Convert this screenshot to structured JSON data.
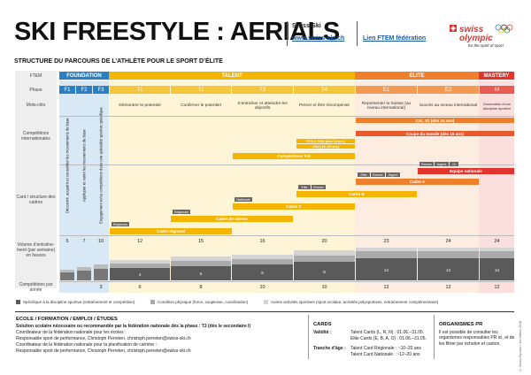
{
  "header": {
    "title": "SKI FREESTYLE : AERIALS",
    "org": "Swiss-Ski",
    "org_link": "www.swiss-ski.ch",
    "ftem_link": "Lien FTEM fédération",
    "logo_text": "swiss olympic",
    "logo_tagline": "for the spirit of sport"
  },
  "subtitle": "STRUCTURE DU PARCOURS DE L’ATHLÈTE POUR LE SPORT D’ÉLITE",
  "row_labels": {
    "ftem": "FTEM",
    "phase": "Phase",
    "mots": "Mots-clés",
    "comp_int": "Compétitions internationales",
    "cadres": "Card / structure des cadres",
    "volume": "Volume d’entraîne-ment (par semaine) en heures",
    "comp_annee": "Compétitions par année"
  },
  "groups": {
    "foundation": "FOUNDATION",
    "talent": "TALENT",
    "elite": "ELITE",
    "mastery": "MASTERY"
  },
  "phases": [
    "F1",
    "F2",
    "F3",
    "T1",
    "T2",
    "T3",
    "T4",
    "E1",
    "E2",
    "M"
  ],
  "mots_cles": {
    "t1": "Démontrer le potentiel",
    "t2": "Confirmer le potentiel",
    "t3": "S’entraîner et atteindre les objectifs",
    "t4": "Percer et être récompensé",
    "e1": "Représenter la Suisse (au niveau international)",
    "e2": "Succès au niveau international",
    "m": "Domination d’une discipline sportive"
  },
  "foundation_texts": {
    "f1": "Découvrir, acquérir et consolider les mouvements de base",
    "f2": "Appliquer et varier les mouvements de base",
    "f3": "Engagement et/ou compétitions dans une spécialité sportive spécifique"
  },
  "competitions": {
    "cm_jo": "CM, JO (dès 15 ans)",
    "coupe_monde": "Coupe du monde (dès 15 ans)",
    "ecoj_cmj": "EOCJ, CMJ (dès 14 ans)",
    "cmj": "CMJ (14–20 ans)",
    "fis": "Compétitions FIS"
  },
  "cadres": {
    "equipe_nat": "Equipe nationale",
    "cadre_a": "Cadre A",
    "cadre_b": "Cadre B",
    "cadre_c": "Cadre C",
    "talents": "Cadre de talents",
    "regional": "Cadre régional"
  },
  "cards": {
    "regionale": "Régionale",
    "nationale": "Nationale",
    "elite": "Elite",
    "bronze": "Bronze",
    "argent": "Argent",
    "or": "Or"
  },
  "volume": {
    "f1": "5",
    "f2": "7",
    "f3": "10",
    "t1": "12",
    "t2": "15",
    "t3": "16",
    "t4": "20",
    "e1": "23",
    "e2": "24",
    "m": "24",
    "sub_t1": "4",
    "sub_t2": "5",
    "sub_t3": "6",
    "sub_t4": "8",
    "sub_e1": "14",
    "sub_e2": "14",
    "sub_m": "14"
  },
  "comp_annee": {
    "f3": "3",
    "t1": "6",
    "t2": "8",
    "t3": "10",
    "t4": "10",
    "e1": "12",
    "e2": "12",
    "m": "12"
  },
  "legend": {
    "specific": "Spécifique à la discipline sportive (entraînement et compétition)",
    "condition": "Condition physique (force, souplesse, coordination)",
    "autres": "Autres activités sportives (sport scolaire, activités polysportives, entraînement complémentaire)"
  },
  "footer": {
    "ecole_title": "ECOLE / FORMATION / EMPLOI / ÉTUDES",
    "ecole_line1": "Solution scolaire nécessaire ou recommandée par la fédération nationale dès la phase : T2 (dès le secondaire I)",
    "ecole_line2": "Coordinateur de la fédération nationale pour les écoles :",
    "ecole_line3": "Responsable sport de performance, Christoph Perreten, christoph.perreten@swiss-ski.ch",
    "ecole_line4": "Coordinateur de la fédération nationale pour la planification de carrière :",
    "ecole_line5": "Responsable sport de performance, Christoph Perreten, christoph.perreten@swiss-ski.ch",
    "cards_title": "CARDS",
    "validite_label": "Validité :",
    "validite_1": "Talent Cards (L, R, N) : 01.06.–31.05.",
    "validite_2": "Elite Cards (E, B, A, O) : 01.06.–31.05.",
    "tranche_label": "Tranche d’âge :",
    "tranche_1": "Talent Card Régionale : ~10–20 ans",
    "tranche_2": "Talent Card Nationale : ~12–20 ans",
    "org_title": "ORGANISMES PR",
    "org_text": "Il est possible de consulter les organismes responsables PR ici, et de les filtrer par échelon et canton.",
    "copyright": "© Swiss Olympic / 1re édition 2018"
  },
  "colors": {
    "foundation": "#2b7fc3",
    "foundation_light": "#d9e8f5",
    "talent": "#f5b400",
    "talent_light": "#fdf2cc",
    "elite": "#f07f2b",
    "elite_light": "#fde3cf",
    "mastery": "#e2342c",
    "mastery_light": "#f9d4d0"
  }
}
